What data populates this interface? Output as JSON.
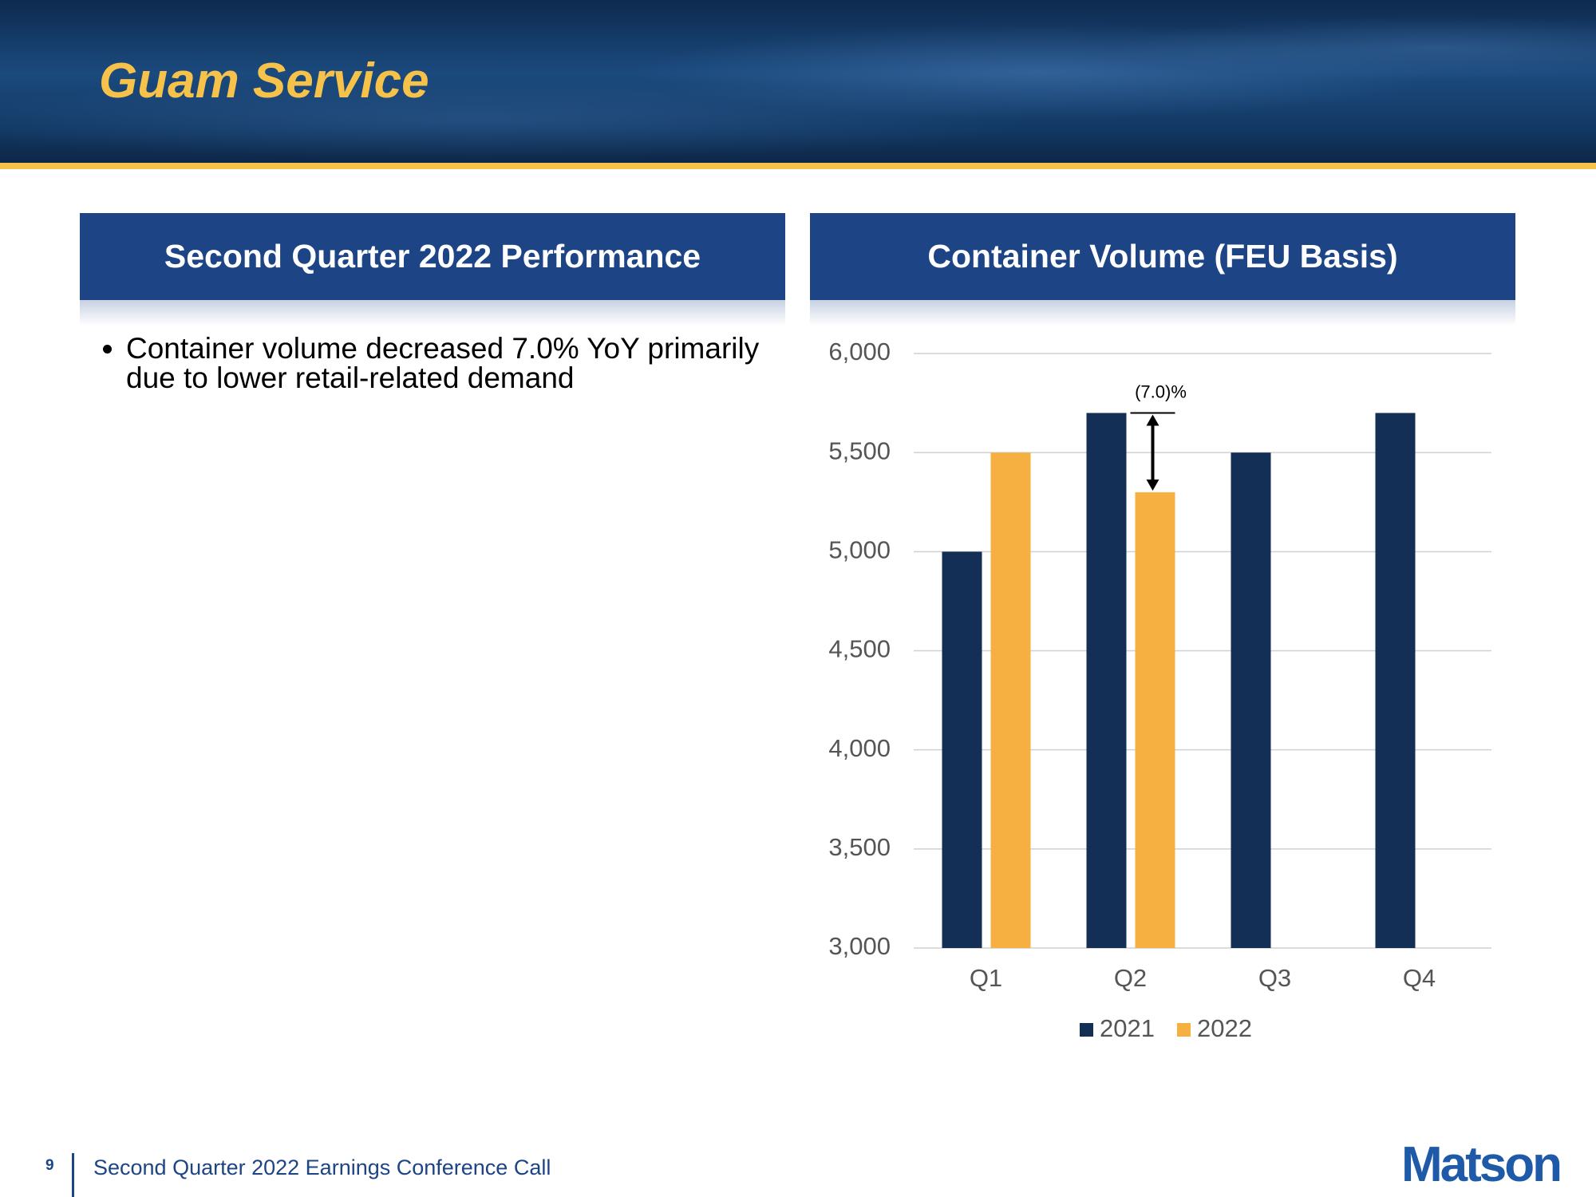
{
  "header": {
    "title": "Guam Service"
  },
  "left_panel": {
    "title": "Second Quarter 2022 Performance",
    "bullets": [
      "Container volume decreased 7.0% YoY primarily due to lower retail-related demand"
    ]
  },
  "chart_data": {
    "type": "bar",
    "title": "Container Volume (FEU Basis)",
    "categories": [
      "Q1",
      "Q2",
      "Q3",
      "Q4"
    ],
    "series": [
      {
        "name": "2021",
        "color": "#142f55",
        "values": [
          5000,
          5700,
          5500,
          5700
        ]
      },
      {
        "name": "2022",
        "color": "#f6b042",
        "values": [
          5500,
          5300,
          null,
          null
        ]
      }
    ],
    "ylim": [
      3000,
      6000
    ],
    "yticks": [
      {
        "value": 3000,
        "label": "3,000"
      },
      {
        "value": 3500,
        "label": "3,500"
      },
      {
        "value": 4000,
        "label": "4,000"
      },
      {
        "value": 4500,
        "label": "4,500"
      },
      {
        "value": 5000,
        "label": "5,000"
      },
      {
        "value": 5500,
        "label": "5,500"
      },
      {
        "value": 6000,
        "label": "6,000"
      }
    ],
    "grid": true,
    "legend": "bottom",
    "annotation": "(7.0)%"
  },
  "footer": {
    "page": "9",
    "text": "Second Quarter 2022 Earnings Conference Call",
    "logo": "Matson"
  }
}
